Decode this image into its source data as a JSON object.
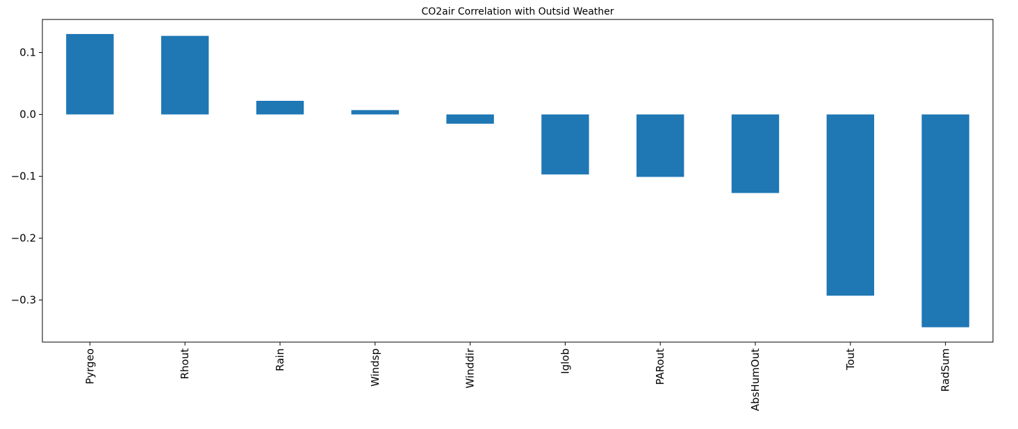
{
  "chart_data": {
    "type": "bar",
    "title": "CO2air Correlation with Outsid Weather",
    "xlabel": "",
    "ylabel": "",
    "categories": [
      "Pyrgeo",
      "Rhout",
      "Rain",
      "Windsp",
      "Winddir",
      "Iglob",
      "PARout",
      "AbsHumOut",
      "Tout",
      "RadSum"
    ],
    "values": [
      0.13,
      0.127,
      0.022,
      0.007,
      -0.015,
      -0.097,
      -0.101,
      -0.127,
      -0.293,
      -0.344
    ],
    "ylim": [
      -0.368,
      0.1535
    ],
    "yticks": [
      0.1,
      0.0,
      -0.1,
      -0.2,
      -0.3
    ],
    "ytick_labels": [
      "0.1",
      "0.0",
      "−0.1",
      "−0.2",
      "−0.3"
    ],
    "bar_color": "#1f77b4",
    "grid": false,
    "legend": "none"
  }
}
